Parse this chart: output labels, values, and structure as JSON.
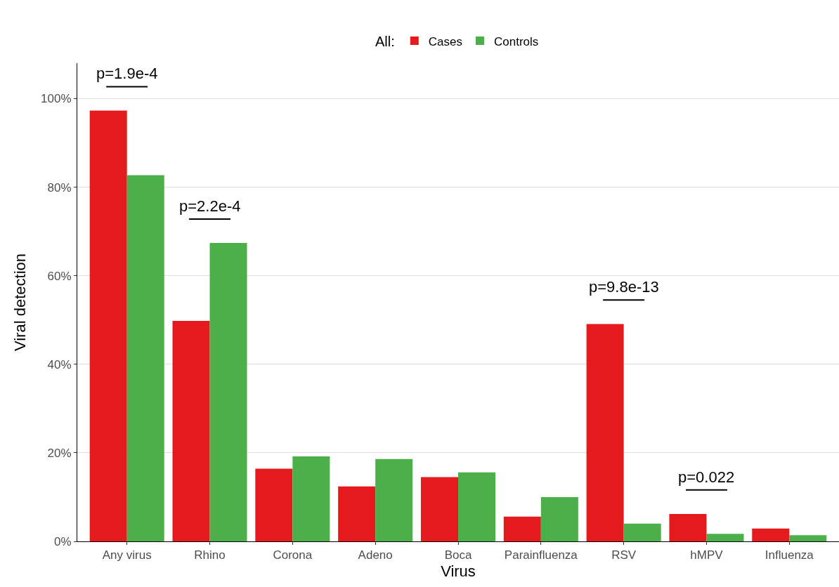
{
  "chart_data": {
    "type": "bar",
    "xlabel": "Virus",
    "ylabel": "Viral detection",
    "legend_title": "All:",
    "categories": [
      "Any virus",
      "Rhino",
      "Corona",
      "Adeno",
      "Boca",
      "Parainfluenza",
      "RSV",
      "hMPV",
      "Influenza"
    ],
    "series": [
      {
        "name": "Cases",
        "color": "#e41a1c",
        "values": [
          97.3,
          49.8,
          16.4,
          12.4,
          14.5,
          5.6,
          49.1,
          6.2,
          2.9
        ]
      },
      {
        "name": "Controls",
        "color": "#4daf4a",
        "values": [
          82.7,
          67.4,
          19.2,
          18.6,
          15.6,
          10.0,
          4.0,
          1.7,
          1.4
        ]
      }
    ],
    "ylim": [
      0,
      108
    ],
    "yticks": [
      {
        "value": 0,
        "label": "0%"
      },
      {
        "value": 20,
        "label": "20%"
      },
      {
        "value": 40,
        "label": "40%"
      },
      {
        "value": 60,
        "label": "60%"
      },
      {
        "value": 80,
        "label": "80%"
      },
      {
        "value": 100,
        "label": "100%"
      }
    ],
    "grid": "y",
    "legend": "top",
    "annotations": [
      "p=1.9e-4",
      "p=2.2e-4",
      "p=9.8e-13",
      "p=0.022"
    ]
  }
}
